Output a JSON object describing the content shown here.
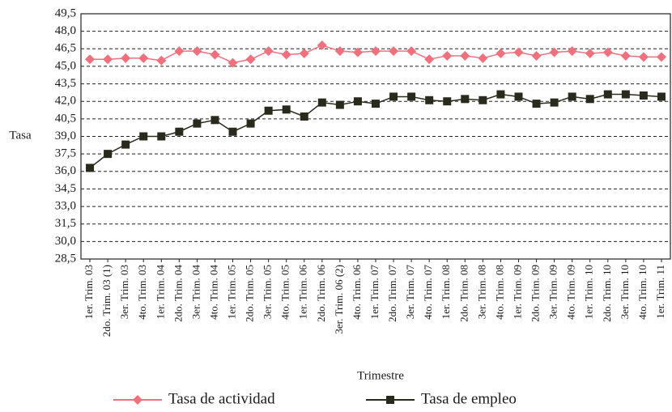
{
  "chart_data": {
    "type": "line",
    "y_label": "Tasa",
    "x_label": "Trimestre",
    "categories": [
      "1er. Trim. 03",
      "2do. Trim. 03 (1)",
      "3er. Trim. 03",
      "4to. Trim. 03",
      "1er. Trim. 04",
      "2do. Trim. 04",
      "3er. Trim. 04",
      "4to. Trim. 04",
      "1er. Trim. 05",
      "2do. Trim. 05",
      "3er. Trim. 05",
      "4to. Trim. 05",
      "1er. Trim. 06",
      "2do. Trim. 06",
      "3er. Trim. 06 (2)",
      "4to. Trim. 06",
      "1er. Trim. 07",
      "2do. Trim. 07",
      "3er. Trim. 07",
      "4to. Trim. 07",
      "1er. Trim. 08",
      "2do. Trim. 08",
      "3er. Trim. 08",
      "4to. Trim. 08",
      "1er. Trim. 09",
      "2do. Trim. 09",
      "3er. Trim. 09",
      "4to. Trim. 09",
      "1er. Trim. 10",
      "2do. Trim. 10",
      "3er. Trim. 10",
      "4to. Trim. 10",
      "1er. Trim. 11"
    ],
    "series": [
      {
        "name": "Tasa de actividad",
        "color": "#f0707e",
        "marker": "diamond",
        "values": [
          45.6,
          45.6,
          45.7,
          45.7,
          45.5,
          46.3,
          46.3,
          46.0,
          45.3,
          45.6,
          46.3,
          46.0,
          46.1,
          46.8,
          46.3,
          46.2,
          46.3,
          46.3,
          46.3,
          45.6,
          45.9,
          45.9,
          45.7,
          46.1,
          46.2,
          45.9,
          46.2,
          46.3,
          46.1,
          46.2,
          45.9,
          45.8,
          45.8
        ]
      },
      {
        "name": "Tasa de empleo",
        "color": "#2a2a1c",
        "marker": "square",
        "values": [
          36.3,
          37.5,
          38.3,
          39.0,
          39.0,
          39.4,
          40.1,
          40.4,
          39.4,
          40.1,
          41.2,
          41.3,
          40.7,
          41.9,
          41.7,
          42.0,
          41.8,
          42.4,
          42.4,
          42.1,
          42.0,
          42.2,
          42.1,
          42.6,
          42.4,
          41.8,
          41.9,
          42.4,
          42.2,
          42.6,
          42.6,
          42.5,
          42.4
        ]
      }
    ],
    "ylim": [
      28.5,
      49.5
    ],
    "yticks": [
      {
        "value": 28.5,
        "label": "28,5"
      },
      {
        "value": 30,
        "label": "30,0"
      },
      {
        "value": 31.5,
        "label": "31,5"
      },
      {
        "value": 33,
        "label": "33,0"
      },
      {
        "value": 34.5,
        "label": "34,5"
      },
      {
        "value": 36,
        "label": "36,0"
      },
      {
        "value": 37.5,
        "label": "37,5"
      },
      {
        "value": 39,
        "label": "39,0"
      },
      {
        "value": 40.5,
        "label": "40,5"
      },
      {
        "value": 42,
        "label": "42,0"
      },
      {
        "value": 43.5,
        "label": "43,5"
      },
      {
        "value": 45,
        "label": "45,0"
      },
      {
        "value": 46.5,
        "label": "46,5"
      },
      {
        "value": 48,
        "label": "48,0"
      },
      {
        "value": 49.5,
        "label": "49,5"
      }
    ],
    "grid": true
  }
}
